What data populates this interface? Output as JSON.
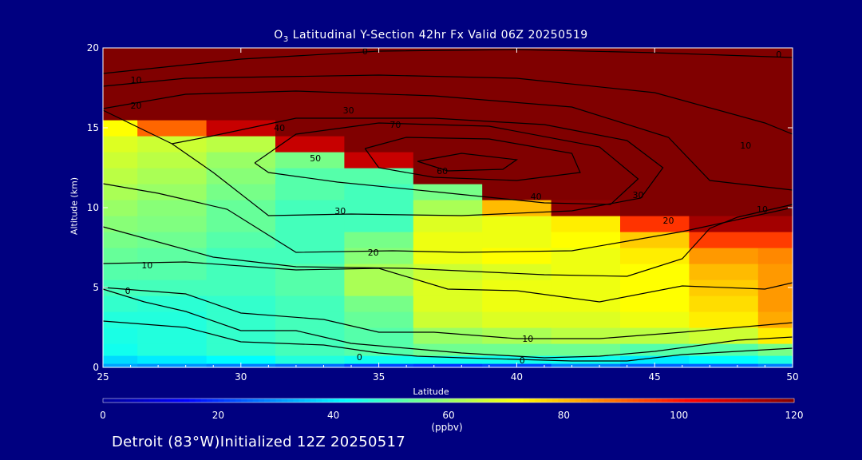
{
  "title": {
    "main_prefix": "O",
    "main_sub": "3",
    "main_rest": " Latitudinal Y-Section 42hr  Fx Valid 06Z 20250519"
  },
  "footer": "Detroit (83°W)Initialized 12Z 20250517",
  "colorbar": {
    "unit": "(ppbv)",
    "min": 0,
    "max": 120,
    "ticks": [
      0,
      20,
      40,
      60,
      80,
      100,
      120
    ]
  },
  "colors": {
    "background": "#000080",
    "axes": "#ffffff",
    "contour": "#000000"
  },
  "chart_data": {
    "type": "heatmap",
    "xlabel": "Latitude",
    "ylabel": "Altitude (km)",
    "xlim": [
      25,
      50
    ],
    "ylim": [
      0,
      20
    ],
    "x_ticks": [
      25,
      30,
      35,
      40,
      45,
      50
    ],
    "y_ticks": [
      0,
      5,
      10,
      15,
      20
    ],
    "colorbar_label": "(ppbv)",
    "color_range": [
      0,
      120
    ],
    "ozone_field_ppbv": {
      "latitudes": [
        25,
        27.5,
        30,
        32.5,
        35,
        37.5,
        40,
        42.5,
        45,
        47.5,
        50
      ],
      "altitudes": [
        0,
        0.5,
        1,
        2,
        3,
        4,
        5,
        6,
        7,
        8,
        9,
        10,
        11,
        12,
        13,
        14,
        15,
        16,
        17,
        18,
        20
      ],
      "values": [
        [
          32,
          30,
          28,
          26,
          22,
          20,
          22,
          28,
          25,
          25,
          28
        ],
        [
          38,
          40,
          42,
          46,
          44,
          44,
          44,
          44,
          40,
          42,
          45
        ],
        [
          44,
          46,
          48,
          50,
          52,
          55,
          55,
          55,
          52,
          52,
          56
        ],
        [
          45,
          46,
          48,
          50,
          52,
          60,
          62,
          64,
          64,
          66,
          74
        ],
        [
          46,
          46,
          48,
          50,
          54,
          66,
          68,
          68,
          70,
          74,
          82
        ],
        [
          48,
          47,
          48,
          50,
          56,
          68,
          70,
          70,
          72,
          76,
          84
        ],
        [
          50,
          50,
          50,
          52,
          62,
          68,
          70,
          70,
          72,
          78,
          84
        ],
        [
          52,
          52,
          50,
          52,
          62,
          66,
          68,
          70,
          72,
          80,
          84
        ],
        [
          54,
          53,
          50,
          50,
          58,
          70,
          72,
          70,
          74,
          84,
          86
        ],
        [
          56,
          55,
          52,
          50,
          56,
          70,
          70,
          72,
          78,
          95,
          95
        ],
        [
          58,
          57,
          54,
          50,
          50,
          68,
          70,
          74,
          96,
          115,
          115
        ],
        [
          60,
          58,
          54,
          50,
          50,
          62,
          80,
          118,
          120,
          120,
          120
        ],
        [
          62,
          60,
          56,
          52,
          50,
          56,
          120,
          120,
          120,
          120,
          120
        ],
        [
          64,
          62,
          58,
          52,
          52,
          120,
          120,
          120,
          120,
          120,
          120
        ],
        [
          66,
          64,
          60,
          56,
          110,
          120,
          120,
          120,
          120,
          120,
          120
        ],
        [
          68,
          66,
          64,
          110,
          120,
          120,
          120,
          120,
          120,
          120,
          120
        ],
        [
          72,
          90,
          110,
          120,
          120,
          120,
          120,
          120,
          120,
          120,
          120
        ],
        [
          120,
          120,
          120,
          120,
          120,
          120,
          120,
          120,
          120,
          120,
          120
        ],
        [
          120,
          120,
          120,
          120,
          120,
          120,
          120,
          120,
          120,
          120,
          120
        ],
        [
          120,
          120,
          120,
          120,
          120,
          120,
          120,
          120,
          120,
          120,
          120
        ],
        [
          120,
          120,
          120,
          120,
          120,
          120,
          120,
          120,
          120,
          120,
          120
        ]
      ]
    },
    "contours": [
      {
        "level": "0",
        "points": [
          [
            25,
            18.4
          ],
          [
            30,
            19.3
          ],
          [
            35,
            19.8
          ],
          [
            40,
            19.9
          ],
          [
            45,
            19.7
          ],
          [
            50,
            19.4
          ]
        ]
      },
      {
        "level": "10",
        "points": [
          [
            25,
            17.6
          ],
          [
            28,
            18.1
          ],
          [
            35,
            18.3
          ],
          [
            40,
            18.1
          ],
          [
            45,
            17.2
          ],
          [
            49,
            15.3
          ],
          [
            50,
            14.6
          ]
        ]
      },
      {
        "level": "20",
        "points": [
          [
            25,
            16.2
          ],
          [
            28,
            17.1
          ],
          [
            32,
            17.3
          ],
          [
            37,
            17
          ],
          [
            42,
            16.3
          ],
          [
            45.5,
            14.4
          ],
          [
            47,
            11.7
          ],
          [
            50,
            11.1
          ]
        ]
      },
      {
        "level": "30",
        "points": [
          [
            25,
            16.1
          ],
          [
            27.5,
            14
          ],
          [
            29,
            12.2
          ],
          [
            31,
            9.5
          ],
          [
            34,
            9.6
          ],
          [
            38,
            9.5
          ],
          [
            42,
            9.8
          ],
          [
            44.5,
            10.6
          ],
          [
            45.3,
            12.5
          ],
          [
            44,
            14.2
          ],
          [
            41,
            15.2
          ],
          [
            37,
            15.6
          ],
          [
            32,
            15.6
          ],
          [
            29,
            14.5
          ],
          [
            27.5,
            14
          ]
        ]
      },
      {
        "level": "40",
        "points": [
          [
            30.5,
            12.8
          ],
          [
            32,
            14.6
          ],
          [
            35,
            15.3
          ],
          [
            39,
            15.1
          ],
          [
            43,
            13.8
          ],
          [
            44.4,
            11.8
          ],
          [
            43.4,
            10.2
          ],
          [
            41,
            10.3
          ],
          [
            37,
            11
          ],
          [
            33.5,
            11.6
          ],
          [
            31,
            12.2
          ],
          [
            30.5,
            12.8
          ]
        ]
      },
      {
        "level": "50",
        "points": [
          [
            34.5,
            13.7
          ],
          [
            36,
            14.4
          ],
          [
            39,
            14.3
          ],
          [
            42,
            13.4
          ],
          [
            42.3,
            12.2
          ],
          [
            40,
            11.7
          ],
          [
            37,
            11.9
          ],
          [
            35,
            12.5
          ],
          [
            34.5,
            13.7
          ]
        ]
      },
      {
        "level": "60",
        "points": [
          [
            36.4,
            12.9
          ],
          [
            38,
            13.4
          ],
          [
            40,
            13
          ],
          [
            39.5,
            12.4
          ],
          [
            37.5,
            12.3
          ],
          [
            36.4,
            12.9
          ]
        ]
      },
      {
        "level": "20",
        "points": [
          [
            25,
            11.5
          ],
          [
            27,
            10.9
          ],
          [
            29.5,
            9.9
          ],
          [
            32,
            7.2
          ],
          [
            35.5,
            7.3
          ],
          [
            38,
            7.2
          ],
          [
            42,
            7.3
          ],
          [
            46,
            8.5
          ],
          [
            50,
            10
          ]
        ]
      },
      {
        "level": "10",
        "points": [
          [
            25,
            8.8
          ],
          [
            29,
            6.9
          ],
          [
            32,
            6.3
          ],
          [
            36,
            6.2
          ],
          [
            41,
            5.8
          ],
          [
            44,
            5.7
          ],
          [
            46,
            6.8
          ],
          [
            47,
            8.7
          ],
          [
            48,
            9.4
          ],
          [
            50,
            10.2
          ]
        ]
      },
      {
        "level": "10",
        "points": [
          [
            25,
            6.5
          ],
          [
            28,
            6.6
          ],
          [
            32,
            6.1
          ],
          [
            35,
            6.2
          ],
          [
            37.5,
            4.9
          ],
          [
            40,
            4.8
          ],
          [
            43,
            4.1
          ],
          [
            46,
            5.1
          ],
          [
            49,
            4.9
          ],
          [
            50,
            5.3
          ]
        ]
      },
      {
        "level": "10",
        "points": [
          [
            25,
            5
          ],
          [
            28,
            4.6
          ],
          [
            30,
            3.4
          ],
          [
            33,
            3
          ],
          [
            35,
            2.2
          ],
          [
            37,
            2.2
          ],
          [
            40,
            1.8
          ],
          [
            43,
            1.8
          ],
          [
            46,
            2.2
          ],
          [
            50,
            2.8
          ]
        ]
      },
      {
        "level": "0",
        "points": [
          [
            25,
            4.9
          ],
          [
            26.5,
            4.1
          ],
          [
            28,
            3.5
          ],
          [
            30,
            2.3
          ],
          [
            32,
            2.3
          ],
          [
            34,
            1.5
          ],
          [
            36,
            1.2
          ],
          [
            38,
            0.9
          ],
          [
            41,
            0.6
          ],
          [
            43,
            0.7
          ],
          [
            45,
            1
          ],
          [
            48,
            1.7
          ],
          [
            50,
            1.9
          ]
        ]
      },
      {
        "level": "0",
        "points": [
          [
            25,
            2.9
          ],
          [
            28,
            2.5
          ],
          [
            30,
            1.6
          ],
          [
            33,
            1.4
          ],
          [
            35,
            0.9
          ],
          [
            36.4,
            0.7
          ],
          [
            38,
            0.6
          ],
          [
            40,
            0.5
          ],
          [
            42,
            0.4
          ],
          [
            44,
            0.4
          ],
          [
            46,
            0.8
          ],
          [
            50,
            1.2
          ]
        ]
      }
    ],
    "contour_labels": [
      {
        "text": "0",
        "x": 34.3,
        "y": 0.65
      },
      {
        "text": "0",
        "x": 40.2,
        "y": 0.45
      },
      {
        "text": "0",
        "x": 25.9,
        "y": 4.8
      },
      {
        "text": "10",
        "x": 26.6,
        "y": 6.4
      },
      {
        "text": "10",
        "x": 40.4,
        "y": 1.8
      },
      {
        "text": "20",
        "x": 34.8,
        "y": 7.2
      },
      {
        "text": "30",
        "x": 33.6,
        "y": 9.8
      },
      {
        "text": "40",
        "x": 40.7,
        "y": 10.7
      },
      {
        "text": "40",
        "x": 31.4,
        "y": 15
      },
      {
        "text": "50",
        "x": 32.7,
        "y": 13.1
      },
      {
        "text": "60",
        "x": 37.3,
        "y": 12.3
      },
      {
        "text": "70",
        "x": 35.6,
        "y": 15.2
      },
      {
        "text": "30",
        "x": 33.9,
        "y": 16.1
      },
      {
        "text": "20",
        "x": 26.2,
        "y": 16.4
      },
      {
        "text": "10",
        "x": 26.2,
        "y": 18
      },
      {
        "text": "0",
        "x": 34.5,
        "y": 19.8
      },
      {
        "text": "30",
        "x": 44.4,
        "y": 10.8
      },
      {
        "text": "20",
        "x": 45.5,
        "y": 9.2
      },
      {
        "text": "10",
        "x": 48.3,
        "y": 13.9
      },
      {
        "text": "10",
        "x": 48.9,
        "y": 9.9
      },
      {
        "text": "0",
        "x": 49.5,
        "y": 19.6
      }
    ]
  }
}
